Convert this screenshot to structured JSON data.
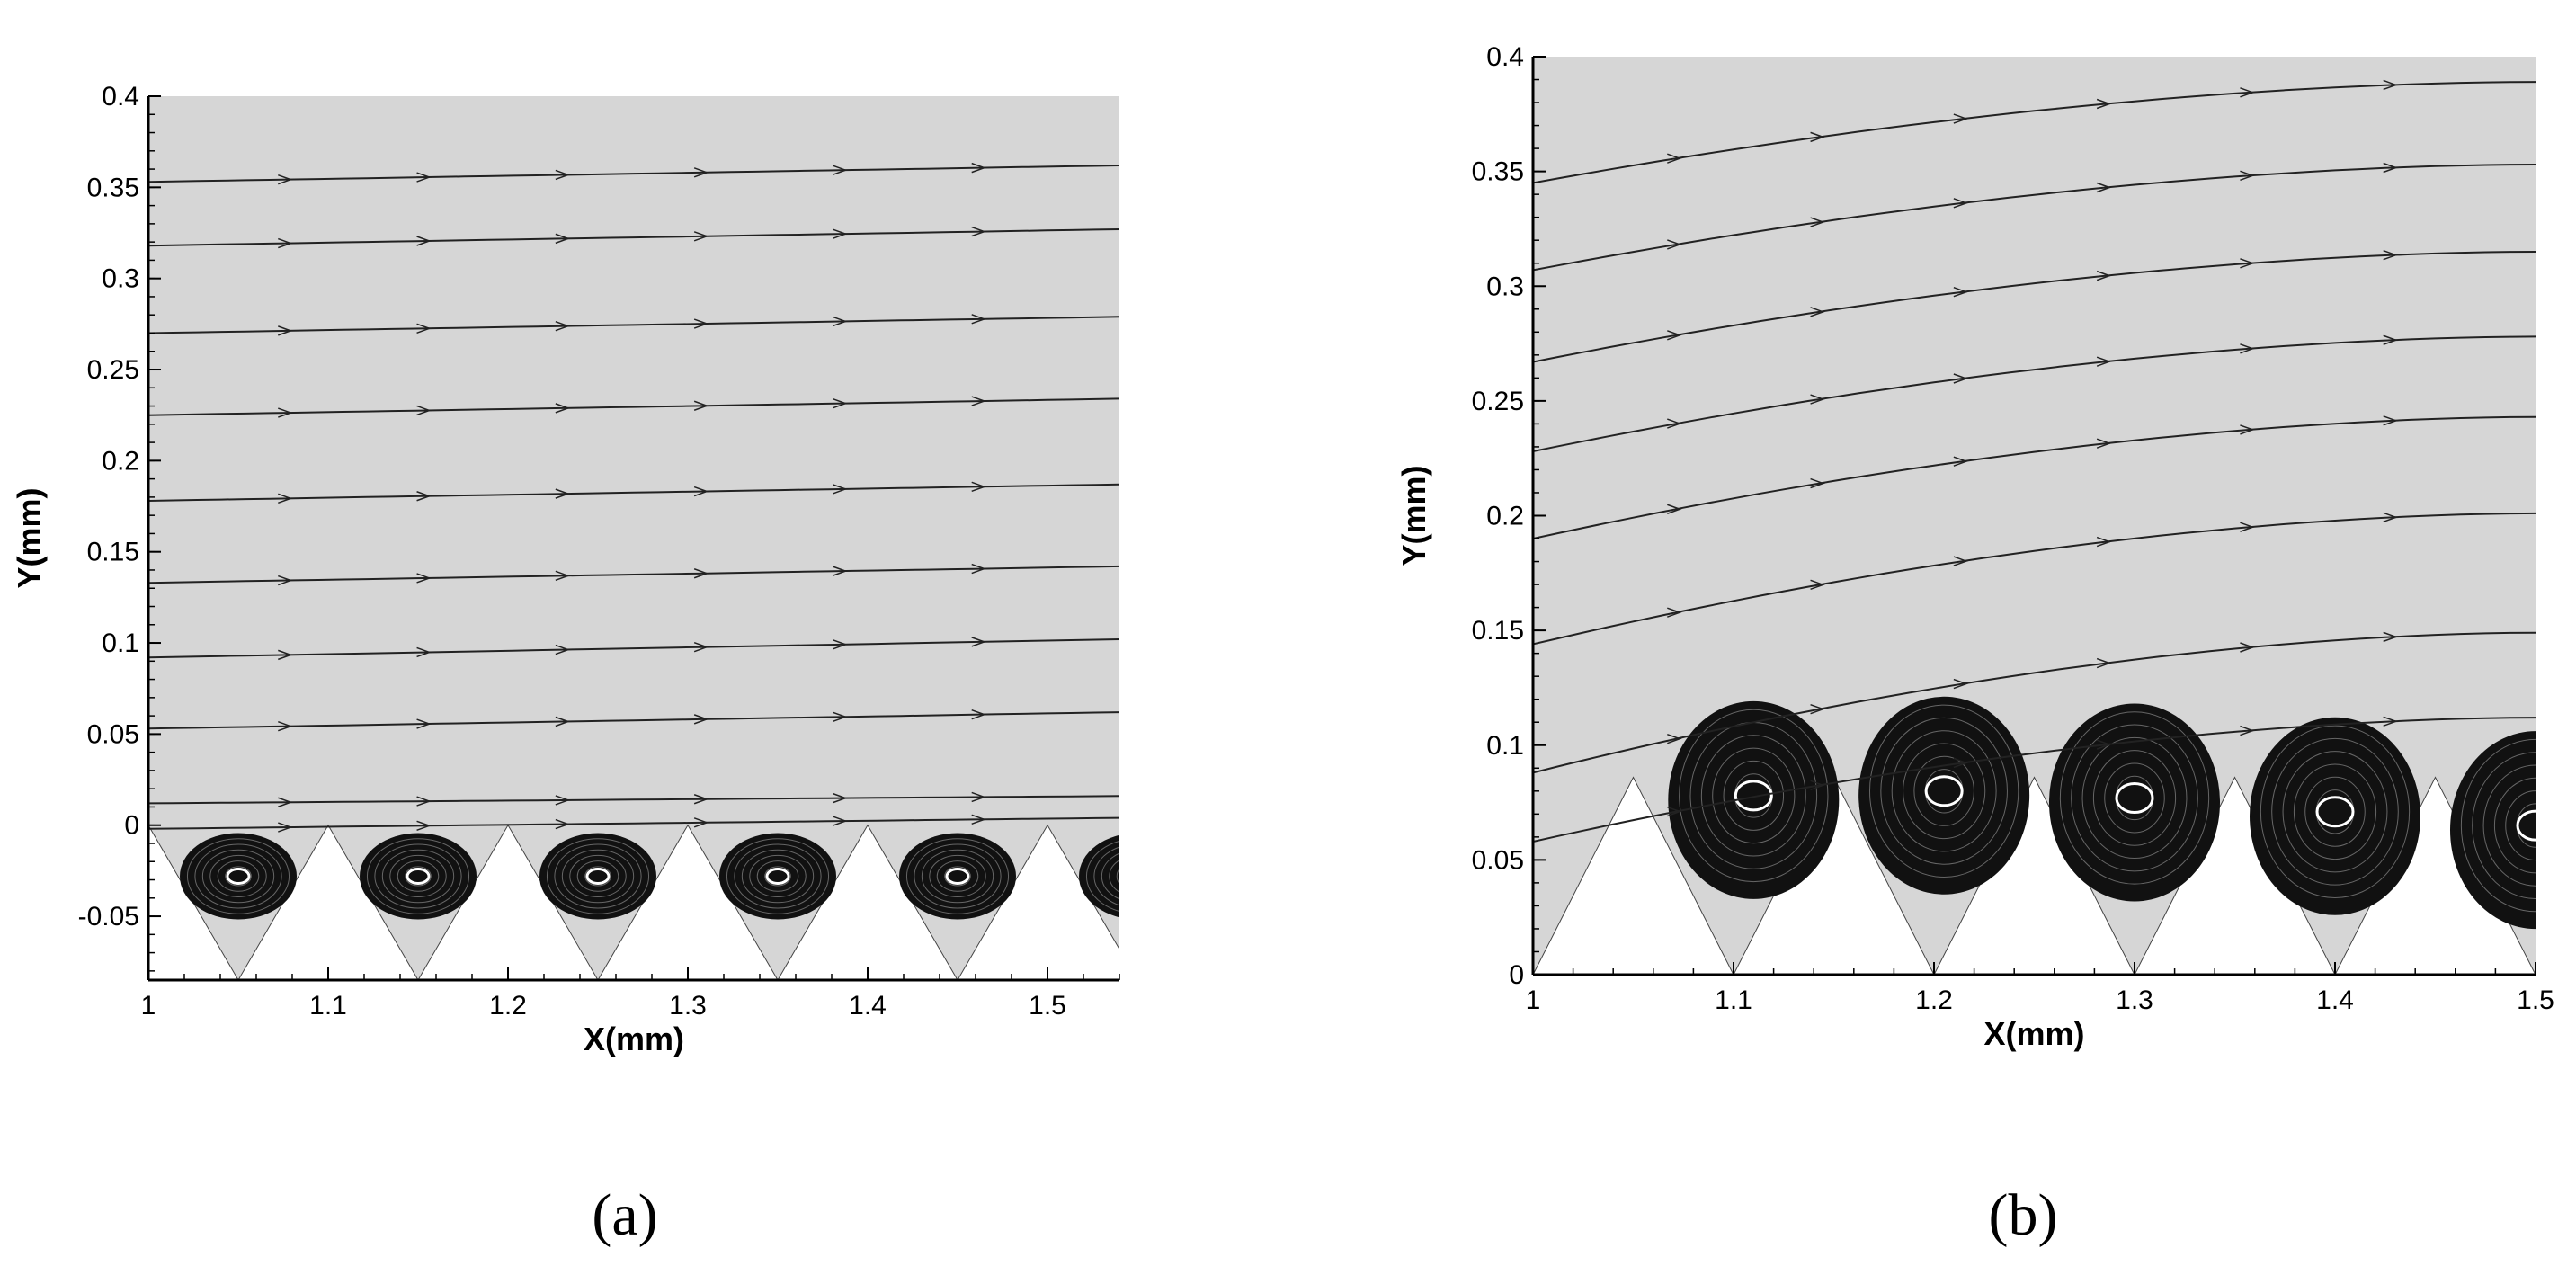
{
  "figure": {
    "panel_labels": [
      "(a)",
      "(b)"
    ]
  },
  "chart_data": [
    {
      "type": "streamline",
      "panel": "(a)",
      "xlabel": "X(mm)",
      "ylabel": "Y(mm)",
      "xlim": [
        1.0,
        1.54
      ],
      "ylim": [
        -0.085,
        0.4
      ],
      "xticks": [
        1,
        1.1,
        1.2,
        1.3,
        1.4,
        1.5
      ],
      "xtick_labels": [
        "1",
        "1.1",
        "1.2",
        "1.3",
        "1.4",
        "1.5"
      ],
      "yticks": [
        -0.05,
        0,
        0.05,
        0.1,
        0.15,
        0.2,
        0.25,
        0.3,
        0.35,
        0.4
      ],
      "ytick_labels": [
        "-0.05",
        "0",
        "0.05",
        "0.1",
        "0.15",
        "0.2",
        "0.25",
        "0.3",
        "0.35",
        "0.4"
      ],
      "background_color": "#d6d6d6",
      "wall": {
        "type": "triangular-grooves",
        "top_y": 0.0,
        "bottom_y": -0.085,
        "peaks_x": [
          1.0,
          1.1,
          1.2,
          1.3,
          1.4,
          1.5
        ],
        "valleys_x": [
          1.05,
          1.15,
          1.25,
          1.35,
          1.45
        ],
        "period": 0.1
      },
      "streamlines": [
        {
          "y_start": 0.353,
          "y_end": 0.362
        },
        {
          "y_start": 0.318,
          "y_end": 0.327
        },
        {
          "y_start": 0.27,
          "y_end": 0.279
        },
        {
          "y_start": 0.225,
          "y_end": 0.234
        },
        {
          "y_start": 0.178,
          "y_end": 0.187
        },
        {
          "y_start": 0.133,
          "y_end": 0.142
        },
        {
          "y_start": 0.092,
          "y_end": 0.102
        },
        {
          "y_start": 0.053,
          "y_end": 0.062
        },
        {
          "y_start": 0.012,
          "y_end": 0.016
        },
        {
          "y_start": -0.002,
          "y_end": 0.004
        }
      ],
      "vortices": [
        {
          "x": 1.05,
          "y": -0.028
        },
        {
          "x": 1.15,
          "y": -0.028
        },
        {
          "x": 1.25,
          "y": -0.028
        },
        {
          "x": 1.35,
          "y": -0.028
        },
        {
          "x": 1.45,
          "y": -0.028
        },
        {
          "x": 1.55,
          "y": -0.028
        }
      ]
    },
    {
      "type": "streamline",
      "panel": "(b)",
      "xlabel": "X(mm)",
      "ylabel": "Y(mm)",
      "xlim": [
        1.0,
        1.5
      ],
      "ylim": [
        0,
        0.4
      ],
      "xticks": [
        1,
        1.1,
        1.2,
        1.3,
        1.4,
        1.5
      ],
      "xtick_labels": [
        "1",
        "1.1",
        "1.2",
        "1.3",
        "1.4",
        "1.5"
      ],
      "yticks": [
        0,
        0.05,
        0.1,
        0.15,
        0.2,
        0.25,
        0.3,
        0.35,
        0.4
      ],
      "ytick_labels": [
        "0",
        "0.05",
        "0.1",
        "0.15",
        "0.2",
        "0.25",
        "0.3",
        "0.35",
        "0.4"
      ],
      "background_color": "#d6d6d6",
      "wall": {
        "type": "triangular-grooves",
        "top_y": 0.086,
        "bottom_y": 0.0,
        "peaks_x": [
          1.05,
          1.15,
          1.25,
          1.35,
          1.45
        ],
        "valleys_x": [
          1.1,
          1.2,
          1.3,
          1.4,
          1.5
        ],
        "first_valley_x": 1.0,
        "period": 0.1
      },
      "streamlines": [
        {
          "y_start": 0.345,
          "y_end": 0.389
        },
        {
          "y_start": 0.307,
          "y_end": 0.353
        },
        {
          "y_start": 0.267,
          "y_end": 0.315
        },
        {
          "y_start": 0.228,
          "y_end": 0.278
        },
        {
          "y_start": 0.19,
          "y_end": 0.243
        },
        {
          "y_start": 0.144,
          "y_end": 0.201
        },
        {
          "y_start": 0.088,
          "y_end": 0.149
        },
        {
          "y_start": 0.058,
          "y_end": 0.112
        }
      ],
      "vortices": [
        {
          "x": 1.11,
          "y": 0.078
        },
        {
          "x": 1.205,
          "y": 0.08
        },
        {
          "x": 1.3,
          "y": 0.077
        },
        {
          "x": 1.4,
          "y": 0.071
        },
        {
          "x": 1.5,
          "y": 0.065
        }
      ]
    }
  ]
}
